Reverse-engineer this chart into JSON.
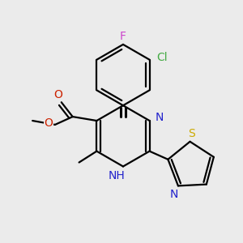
{
  "background_color": "#ebebeb",
  "bond_color": "#000000",
  "bond_width": 1.6,
  "figsize": [
    3.0,
    3.0
  ],
  "dpi": 100,
  "colors": {
    "F": "#cc44cc",
    "Cl": "#44aa44",
    "O": "#cc2200",
    "N": "#2222cc",
    "S": "#ccaa00",
    "C": "#000000"
  }
}
